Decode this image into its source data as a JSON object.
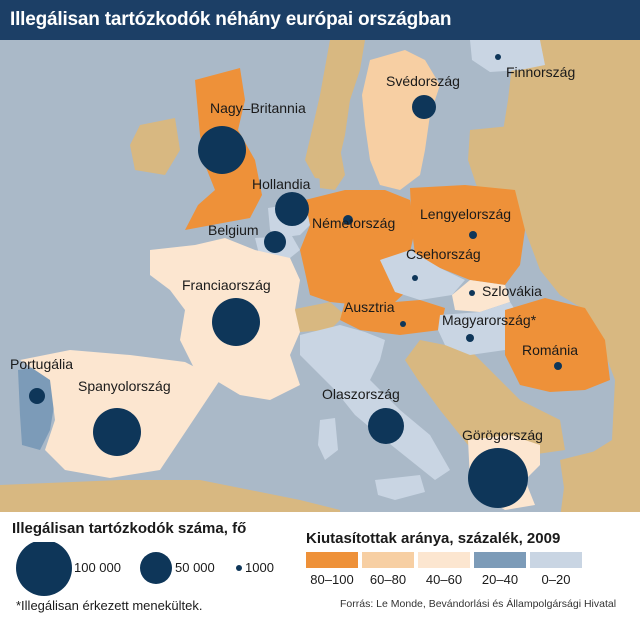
{
  "title": "Illegálisan tartózkodók néhány európai országban",
  "colors": {
    "title_bg": "#1c3f66",
    "sea": "#aab9c8",
    "other_land": "#d8b881",
    "bubble": "#0e3659",
    "class_80_100": "#ee9139",
    "class_60_80": "#f7cfa3",
    "class_40_60": "#fce6d0",
    "class_20_40": "#7c9bb8",
    "class_0_20": "#c9d5e3"
  },
  "countries": [
    {
      "name": "Nagy–Britannia",
      "class": "80–100"
    },
    {
      "name": "Svédország",
      "class": "60–80"
    },
    {
      "name": "Finnország",
      "class": "0–20"
    },
    {
      "name": "Hollandia",
      "class": "0–20"
    },
    {
      "name": "Belgium",
      "class": "0–20"
    },
    {
      "name": "Németország",
      "class": "80–100"
    },
    {
      "name": "Lengyelország",
      "class": "80–100"
    },
    {
      "name": "Csehország",
      "class": "0–20"
    },
    {
      "name": "Szlovákia",
      "class": "40–60"
    },
    {
      "name": "Franciaország",
      "class": "40–60"
    },
    {
      "name": "Ausztria",
      "class": "80–100"
    },
    {
      "name": "Magyarország*",
      "class": "0–20"
    },
    {
      "name": "Románia",
      "class": "80–100"
    },
    {
      "name": "Portugália",
      "class": "20–40"
    },
    {
      "name": "Spanyolország",
      "class": "40–60"
    },
    {
      "name": "Olaszország",
      "class": "0–20"
    },
    {
      "name": "Görögország",
      "class": "40–60"
    }
  ],
  "legend": {
    "size_title": "Illegálisan tartózkodók száma, fő",
    "sizes": [
      "100 000",
      "50 000",
      "1000"
    ],
    "footnote": "*Illegálisan érkezett menekültek.",
    "ratio_title": "Kiutasítottak aránya, százalék, 2009",
    "classes": [
      "80–100",
      "60–80",
      "40–60",
      "20–40",
      "0–20"
    ],
    "source": "Forrás: Le Monde, Bevándorlási és Állampolgársági Hivatal"
  }
}
